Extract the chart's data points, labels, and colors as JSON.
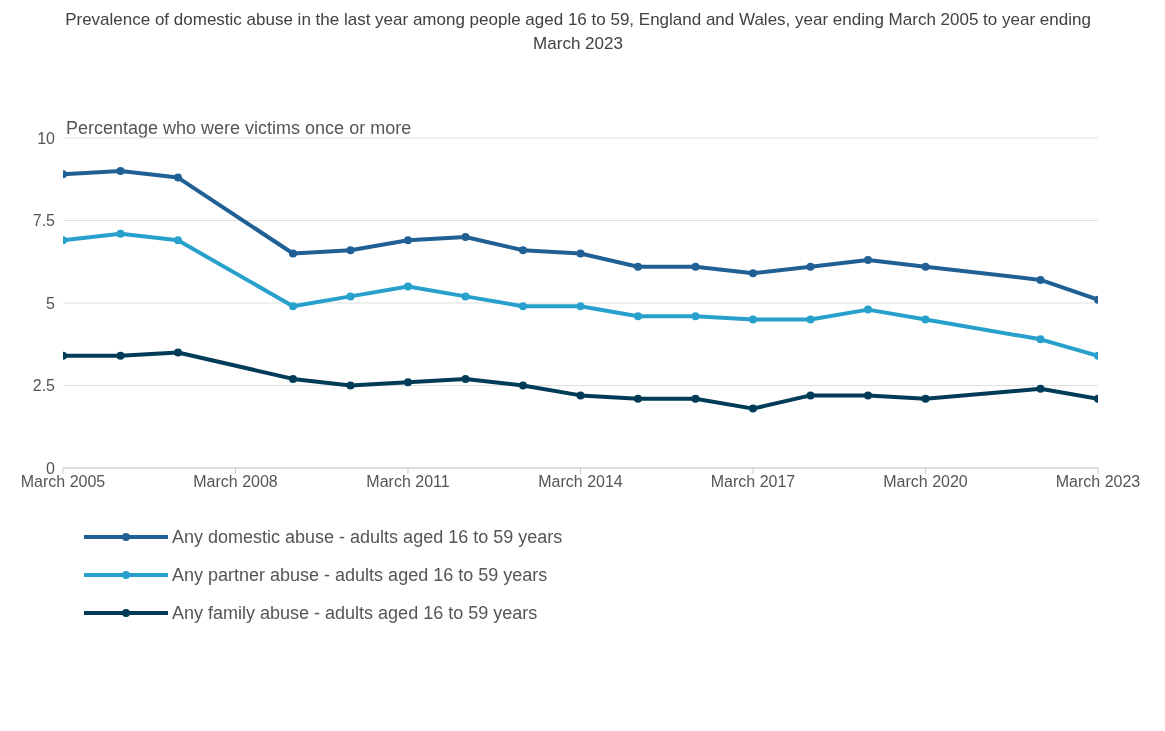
{
  "chart_data": {
    "type": "line",
    "title": "Prevalence of domestic abuse in the last year among people aged 16 to 59, England and Wales, year ending March 2005 to year ending March 2023",
    "ylabel": "Percentage who were victims once or more",
    "x": [
      "2005-03",
      "2006-03",
      "2007-03",
      "2009-03",
      "2010-03",
      "2011-03",
      "2012-03",
      "2013-03",
      "2014-03",
      "2015-03",
      "2016-03",
      "2017-03",
      "2018-03",
      "2019-03",
      "2020-03",
      "2022-03",
      "2023-03"
    ],
    "series": [
      {
        "name": "Any domestic abuse - adults aged 16 to 59 years",
        "color": "#206095",
        "values": [
          8.9,
          9.0,
          8.8,
          6.5,
          6.6,
          6.9,
          7.0,
          6.6,
          6.5,
          6.1,
          6.1,
          5.9,
          6.1,
          6.3,
          6.1,
          5.7,
          5.1
        ]
      },
      {
        "name": "Any partner abuse - adults aged 16 to 59 years",
        "color": "#27a0cc",
        "values": [
          6.9,
          7.1,
          6.9,
          4.9,
          5.2,
          5.5,
          5.2,
          4.9,
          4.9,
          4.6,
          4.6,
          4.5,
          4.5,
          4.8,
          4.5,
          3.9,
          3.4
        ]
      },
      {
        "name": "Any family abuse - adults aged 16 to 59 years",
        "color": "#003c57",
        "values": [
          3.4,
          3.4,
          3.5,
          2.7,
          2.5,
          2.6,
          2.7,
          2.5,
          2.2,
          2.1,
          2.1,
          1.8,
          2.2,
          2.2,
          2.1,
          2.4,
          2.1
        ]
      }
    ],
    "xlim": [
      "2005-03",
      "2023-03"
    ],
    "xticks": [
      {
        "value": "2005-03",
        "label": "March 2005"
      },
      {
        "value": "2008-03",
        "label": "March 2008"
      },
      {
        "value": "2011-03",
        "label": "March 2011"
      },
      {
        "value": "2014-03",
        "label": "March 2014"
      },
      {
        "value": "2017-03",
        "label": "March 2017"
      },
      {
        "value": "2020-03",
        "label": "March 2020"
      },
      {
        "value": "2023-03",
        "label": "March 2023"
      }
    ],
    "ylim": [
      0,
      10
    ],
    "yticks": [
      0,
      2.5,
      5,
      7.5,
      10
    ],
    "grid": "y",
    "legend": "bottom",
    "marker": "circle",
    "line_style": "solid"
  }
}
